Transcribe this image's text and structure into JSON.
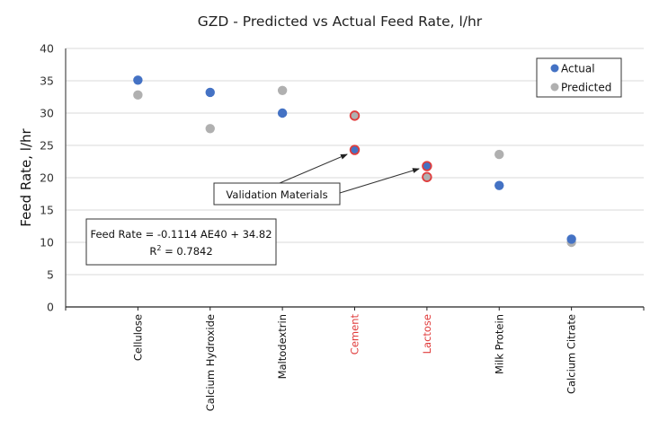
{
  "chart_data": {
    "type": "scatter",
    "title": "GZD - Predicted vs Actual Feed Rate, l/hr",
    "xlabel": "",
    "ylabel": "Feed Rate, l/hr",
    "ylim": [
      0,
      40
    ],
    "yticks": [
      0,
      5,
      10,
      15,
      20,
      25,
      30,
      35,
      40
    ],
    "grid": true,
    "legend_position": "top-right",
    "categories": [
      "Cellulose",
      "Calcium Hydroxide",
      "Maltodextrin",
      "Cement",
      "Lactose",
      "Milk Protein",
      "Calcium Citrate"
    ],
    "highlighted_categories": [
      "Cement",
      "Lactose"
    ],
    "series": [
      {
        "name": "Actual",
        "color": "#4472c4",
        "values": [
          35.1,
          33.2,
          30.0,
          24.3,
          21.8,
          18.8,
          10.5
        ]
      },
      {
        "name": "Predicted",
        "color": "#b0b0b0",
        "values": [
          32.8,
          27.6,
          33.5,
          29.6,
          20.1,
          23.6,
          10.0
        ]
      }
    ],
    "annotations": {
      "equation_line1": "Feed Rate = -0.1114 AE40 + 34.82",
      "equation_line2_prefix": "R",
      "equation_line2_sup": "2",
      "equation_line2_suffix": " = 0.7842",
      "callout": "Validation Materials"
    },
    "highlight_color": "#e03c3c"
  }
}
